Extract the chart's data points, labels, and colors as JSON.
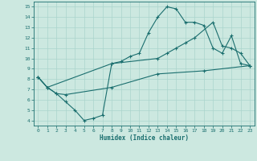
{
  "xlabel": "Humidex (Indice chaleur)",
  "bg_color": "#cce8e0",
  "grid_color": "#aad4cc",
  "line_color": "#1a6e6e",
  "xlim": [
    -0.5,
    23.5
  ],
  "ylim": [
    3.5,
    15.5
  ],
  "xticks": [
    0,
    1,
    2,
    3,
    4,
    5,
    6,
    7,
    8,
    9,
    10,
    11,
    12,
    13,
    14,
    15,
    16,
    17,
    18,
    19,
    20,
    21,
    22,
    23
  ],
  "yticks": [
    4,
    5,
    6,
    7,
    8,
    9,
    10,
    11,
    12,
    13,
    14,
    15
  ],
  "line1_x": [
    0,
    1,
    2,
    3,
    4,
    5,
    6,
    7,
    8,
    9,
    10,
    11,
    12,
    13,
    14,
    15,
    16,
    17,
    18,
    19,
    20,
    21,
    22,
    23
  ],
  "line1_y": [
    8.2,
    7.2,
    6.6,
    5.8,
    5.0,
    4.0,
    4.2,
    4.5,
    9.5,
    9.7,
    10.2,
    10.5,
    12.5,
    14.0,
    15.0,
    14.8,
    13.5,
    13.5,
    13.2,
    11.0,
    10.5,
    12.2,
    9.5,
    9.3
  ],
  "line2_x": [
    0,
    1,
    8,
    13,
    14,
    15,
    16,
    17,
    19,
    20,
    21,
    22,
    23
  ],
  "line2_y": [
    8.2,
    7.2,
    9.5,
    10.0,
    10.5,
    11.0,
    11.5,
    12.0,
    13.5,
    11.2,
    11.0,
    10.5,
    9.3
  ],
  "line3_x": [
    0,
    1,
    2,
    3,
    8,
    13,
    18,
    23
  ],
  "line3_y": [
    8.2,
    7.2,
    6.6,
    6.5,
    7.2,
    8.5,
    8.8,
    9.3
  ]
}
